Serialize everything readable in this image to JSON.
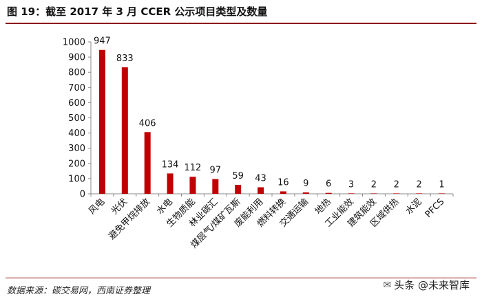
{
  "header": {
    "title": "图 19：截至 2017 年 3 月 CCER 公示项目类型及数量"
  },
  "footer": {
    "source": "数据来源：碳交易网，西南证券整理",
    "watermark": "头条 @未来智库"
  },
  "chart_data": {
    "type": "bar",
    "title": "图 19：截至 2017 年 3 月 CCER 公示项目类型及数量",
    "xlabel": "",
    "ylabel": "",
    "ylim": [
      0,
      1000
    ],
    "yticks": [
      0,
      100,
      200,
      300,
      400,
      500,
      600,
      700,
      800,
      900,
      1000
    ],
    "grid": false,
    "bar_color": "#c00000",
    "categories": [
      "风电",
      "光伏",
      "避免甲烷排放",
      "水电",
      "生物质能",
      "林业碳汇",
      "煤层气/煤矿瓦斯",
      "废能利用",
      "燃料转换",
      "交通运输",
      "地热",
      "工业能效",
      "建筑能效",
      "区域供热",
      "水泥",
      "PFCS"
    ],
    "values": [
      947,
      833,
      406,
      134,
      112,
      97,
      59,
      43,
      16,
      9,
      6,
      3,
      2,
      2,
      2,
      1
    ]
  }
}
